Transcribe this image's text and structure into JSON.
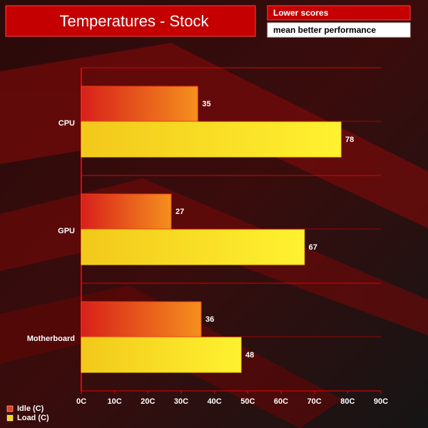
{
  "chart_data": {
    "type": "hbar",
    "title": "Temperatures - Stock",
    "annotations": [
      "Lower scores",
      "mean better performance"
    ],
    "categories": [
      "CPU",
      "GPU",
      "Motherboard"
    ],
    "series": [
      {
        "name": "Idle (C)",
        "color": "#e8401a",
        "values": [
          35,
          27,
          36
        ]
      },
      {
        "name": "Load (C)",
        "color": "#f5d41c",
        "values": [
          78,
          67,
          48
        ]
      }
    ],
    "xlim": [
      0,
      90
    ],
    "xticks": [
      {
        "value": 0,
        "label": "0C"
      },
      {
        "value": 10,
        "label": "10C"
      },
      {
        "value": 20,
        "label": "20C"
      },
      {
        "value": 30,
        "label": "30C"
      },
      {
        "value": 40,
        "label": "40C"
      },
      {
        "value": 50,
        "label": "50C"
      },
      {
        "value": 60,
        "label": "60C"
      },
      {
        "value": 70,
        "label": "70C"
      },
      {
        "value": 80,
        "label": "80C"
      },
      {
        "value": 90,
        "label": "90C"
      }
    ],
    "legend": "bottom-left"
  }
}
